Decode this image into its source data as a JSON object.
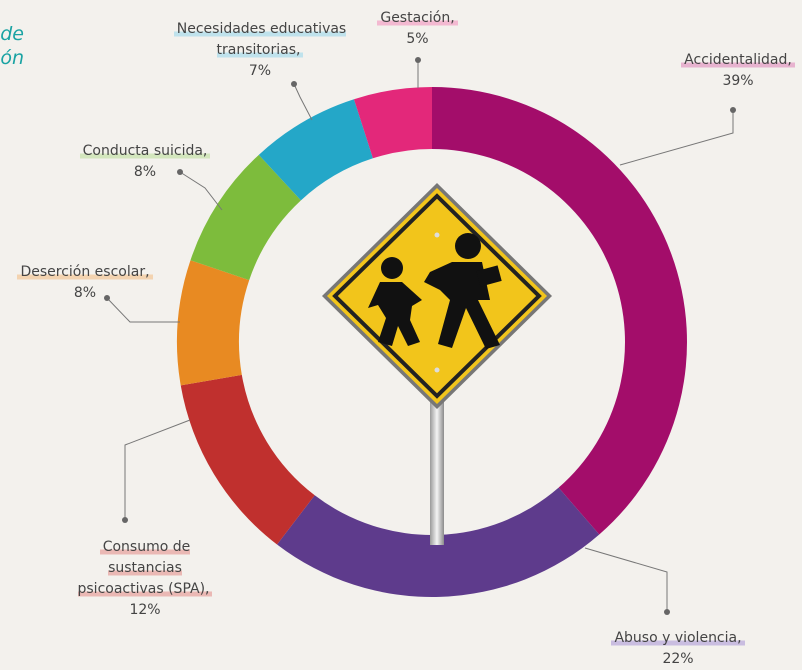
{
  "title_fragments": [
    "de",
    "ón"
  ],
  "chart_data": {
    "type": "donut",
    "categories": [
      "Accidentalidad,",
      "Abuso y violencia,",
      "Consumo de sustancias psicoactivas (SPA),",
      "Deserción escolar,",
      "Conducta suicida,",
      "Necesidades educativas transitorias,",
      "Gestación,"
    ],
    "values": [
      39,
      22,
      12,
      8,
      8,
      7,
      5
    ],
    "value_labels": [
      "39%",
      "22%",
      "12%",
      "8%",
      "8%",
      "7%",
      "5%"
    ],
    "colors": [
      "#a30d6a",
      "#5e3b8c",
      "#c0302e",
      "#e88a22",
      "#7dbc3c",
      "#24a7c8",
      "#e3287a"
    ]
  }
}
